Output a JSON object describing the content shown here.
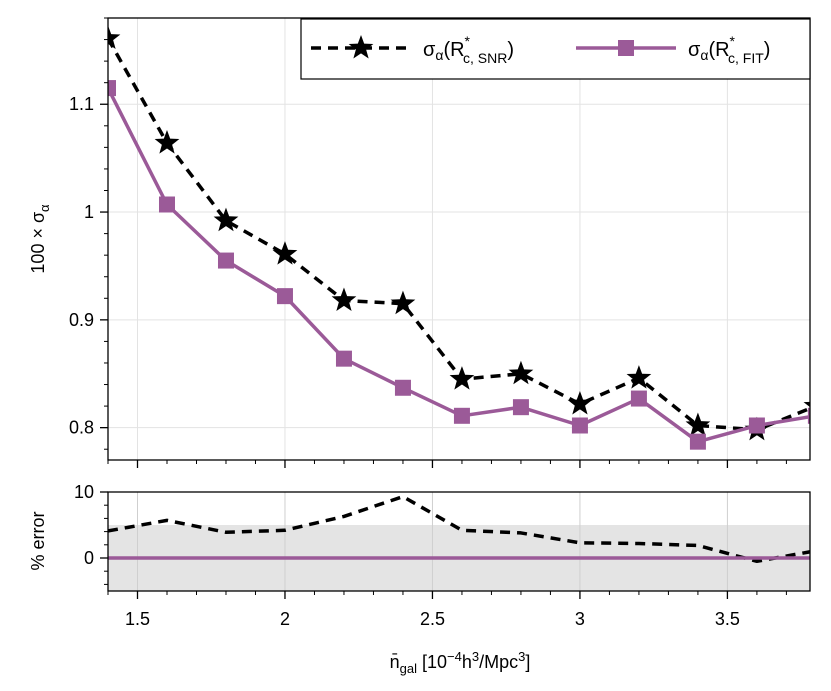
{
  "chart_data": [
    {
      "type": "line",
      "panel": "main",
      "ylabel": "100 × σ_α",
      "ylabel_parts": {
        "main": "100 × σ",
        "sub": "α"
      },
      "xlim": [
        1.4,
        3.78
      ],
      "ylim": [
        0.77,
        1.18
      ],
      "yticks": [
        0.8,
        0.9,
        1.0,
        1.1
      ],
      "ytick_labels": [
        "0.8",
        "0.9",
        "1",
        "1.1"
      ],
      "grid": true,
      "legend_position": "top-right",
      "x": [
        1.4,
        1.6,
        1.8,
        2.0,
        2.2,
        2.4,
        2.6,
        2.8,
        3.0,
        3.2,
        3.4,
        3.6,
        3.8
      ],
      "series": [
        {
          "legend": {
            "prefix": "σ",
            "sub1": "α",
            "mid": "(R",
            "sup": "*",
            "sub2": "c, SNR",
            "suffix": ")"
          },
          "style": "dashed",
          "marker": "star",
          "color": "#000000",
          "values": [
            1.161,
            1.064,
            0.992,
            0.961,
            0.918,
            0.915,
            0.845,
            0.85,
            0.822,
            0.846,
            0.802,
            0.798,
            0.82
          ]
        },
        {
          "legend": {
            "prefix": "σ",
            "sub1": "α",
            "mid": "(R",
            "sup": "*",
            "sub2": "c, FIT",
            "suffix": ")"
          },
          "style": "solid",
          "marker": "square",
          "color": "#9b5a98",
          "values": [
            1.115,
            1.007,
            0.955,
            0.922,
            0.864,
            0.837,
            0.811,
            0.819,
            0.802,
            0.827,
            0.787,
            0.802,
            0.811
          ]
        }
      ]
    },
    {
      "type": "line",
      "panel": "ratio",
      "ylabel": "% error",
      "xlabel_parts": {
        "n": "n̄",
        "sub": "gal",
        "rest1": " [10",
        "sup1": "−4",
        "rest2": "h",
        "sup2": "3",
        "rest3": "/Mpc",
        "sup3": "3",
        "rest4": "]"
      },
      "xlim": [
        1.4,
        3.78
      ],
      "ylim": [
        -5,
        10
      ],
      "yticks": [
        0,
        10
      ],
      "ytick_labels": [
        "0",
        "10"
      ],
      "xticks": [
        1.5,
        2.0,
        2.5,
        3.0,
        3.5
      ],
      "xtick_labels": [
        "1.5",
        "2",
        "2.5",
        "3",
        "3.5"
      ],
      "band": [
        -5,
        5
      ],
      "band_color": "#e4e4e4",
      "x": [
        1.4,
        1.6,
        1.8,
        2.0,
        2.2,
        2.4,
        2.6,
        2.8,
        3.0,
        3.2,
        3.4,
        3.6,
        3.8
      ],
      "series": [
        {
          "style": "dashed",
          "color": "#000000",
          "values": [
            4.1,
            5.7,
            3.9,
            4.2,
            6.3,
            9.3,
            4.2,
            3.8,
            2.3,
            2.2,
            1.9,
            -0.5,
            1.1
          ]
        },
        {
          "style": "solid",
          "color": "#9b5a98",
          "values": [
            0,
            0,
            0,
            0,
            0,
            0,
            0,
            0,
            0,
            0,
            0,
            0,
            0
          ]
        }
      ]
    }
  ]
}
